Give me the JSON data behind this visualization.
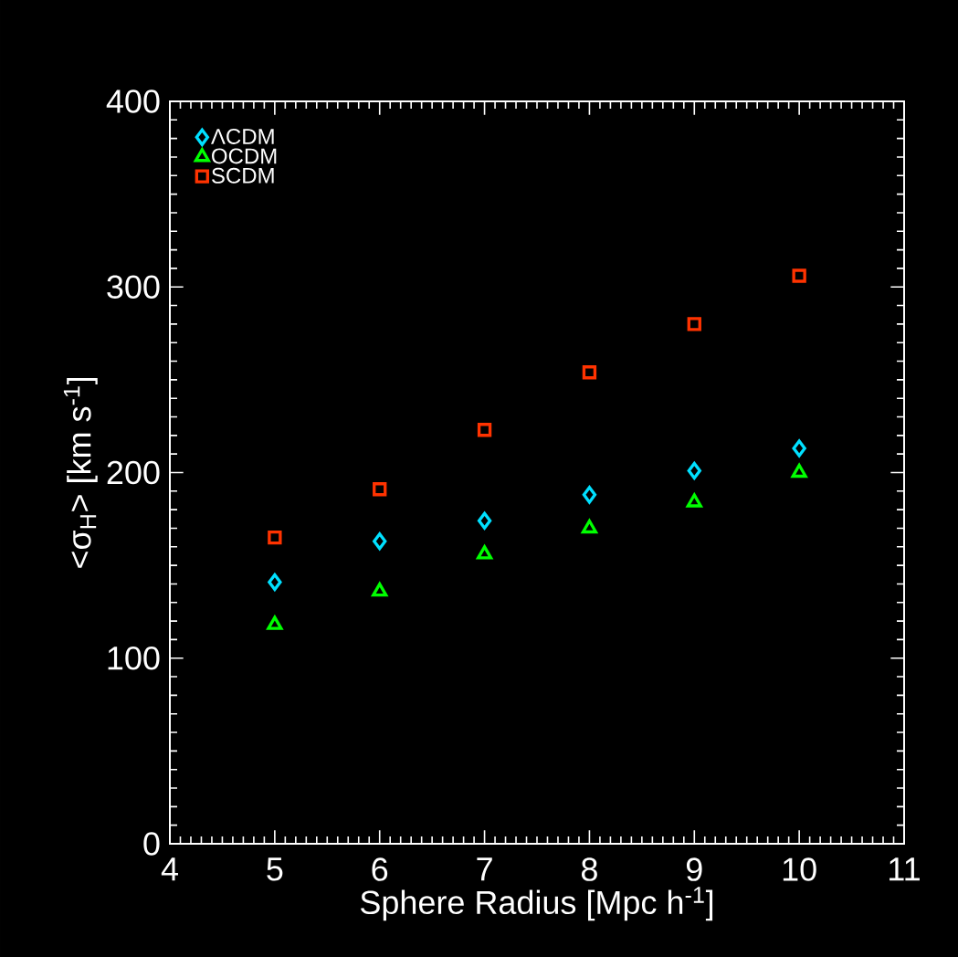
{
  "chart_data": {
    "type": "scatter",
    "xlabel": "Sphere Radius [Mpc h$^{-1}$]",
    "ylabel": "<σ$_{H}$> [km s$^{-1}$]",
    "x": [
      5,
      6,
      7,
      8,
      9,
      10
    ],
    "xlim": [
      4,
      11
    ],
    "xticks": [
      4,
      5,
      6,
      7,
      8,
      9,
      10,
      11
    ],
    "ylim": [
      0,
      400
    ],
    "yticks": [
      0,
      100,
      200,
      300,
      400
    ],
    "legend": "top left",
    "series": [
      {
        "name": "ΛCDM",
        "color": "#00e0ff",
        "marker": "diamond",
        "values": [
          141,
          163,
          174,
          188,
          201,
          213
        ]
      },
      {
        "name": "OCDM",
        "color": "#00ff00",
        "marker": "triangle",
        "values": [
          118,
          136,
          156,
          170,
          184,
          200
        ]
      },
      {
        "name": "SCDM",
        "color": "#ff3300",
        "marker": "square",
        "values": [
          165,
          191,
          223,
          254,
          280,
          306
        ]
      }
    ]
  }
}
